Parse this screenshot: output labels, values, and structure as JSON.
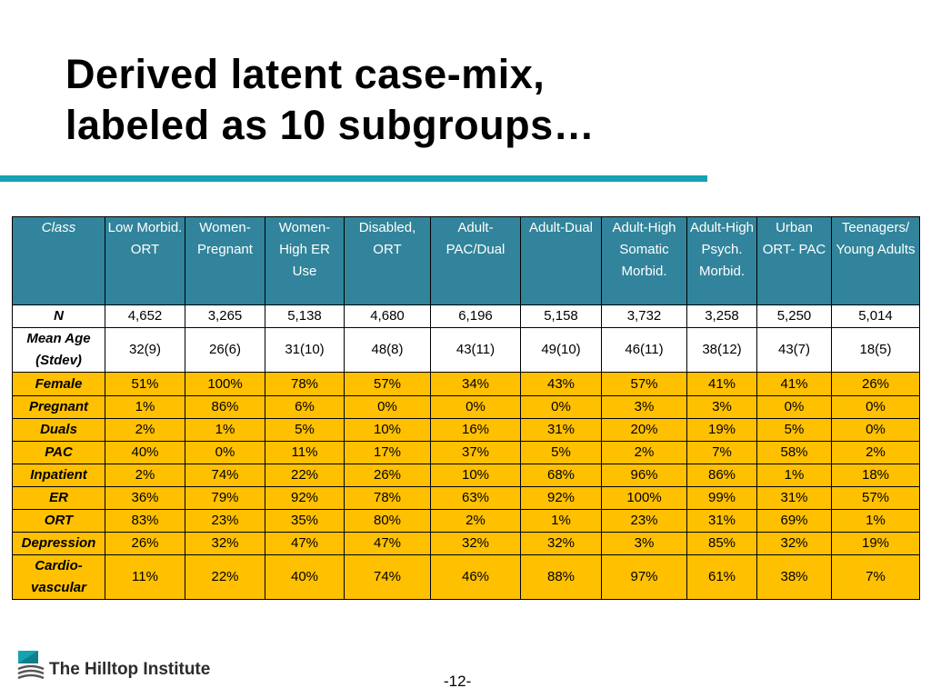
{
  "title": {
    "line1": "Derived latent case-mix,",
    "line2": "labeled as 10 subgroups…"
  },
  "table": {
    "header_label": "Class",
    "columns": [
      "Low Morbid. ORT",
      "Women-Pregnant",
      "Women-High ER Use",
      "Disabled, ORT",
      "Adult-PAC/Dual",
      "Adult-Dual",
      "Adult-High Somatic Morbid.",
      "Adult-High Psych. Morbid.",
      "Urban ORT- PAC",
      "Teenagers/ Young Adults"
    ],
    "rows": [
      {
        "label": "N",
        "values": [
          "4,652",
          "3,265",
          "5,138",
          "4,680",
          "6,196",
          "5,158",
          "3,732",
          "3,258",
          "5,250",
          "5,014"
        ]
      },
      {
        "label": "Mean Age (Stdev)",
        "values": [
          "32(9)",
          "26(6)",
          "31(10)",
          "48(8)",
          "43(11)",
          "49(10)",
          "46(11)",
          "38(12)",
          "43(7)",
          "18(5)"
        ]
      },
      {
        "label": "Female",
        "values": [
          "51%",
          "100%",
          "78%",
          "57%",
          "34%",
          "43%",
          "57%",
          "41%",
          "41%",
          "26%"
        ]
      },
      {
        "label": "Pregnant",
        "values": [
          "1%",
          "86%",
          "6%",
          "0%",
          "0%",
          "0%",
          "3%",
          "3%",
          "0%",
          "0%"
        ]
      },
      {
        "label": "Duals",
        "values": [
          "2%",
          "1%",
          "5%",
          "10%",
          "16%",
          "31%",
          "20%",
          "19%",
          "5%",
          "0%"
        ]
      },
      {
        "label": "PAC",
        "values": [
          "40%",
          "0%",
          "11%",
          "17%",
          "37%",
          "5%",
          "2%",
          "7%",
          "58%",
          "2%"
        ]
      },
      {
        "label": "Inpatient",
        "values": [
          "2%",
          "74%",
          "22%",
          "26%",
          "10%",
          "68%",
          "96%",
          "86%",
          "1%",
          "18%"
        ]
      },
      {
        "label": "ER",
        "values": [
          "36%",
          "79%",
          "92%",
          "78%",
          "63%",
          "92%",
          "100%",
          "99%",
          "31%",
          "57%"
        ]
      },
      {
        "label": "ORT",
        "values": [
          "83%",
          "23%",
          "35%",
          "80%",
          "2%",
          "1%",
          "23%",
          "31%",
          "69%",
          "1%"
        ]
      },
      {
        "label": "Depression",
        "values": [
          "26%",
          "32%",
          "47%",
          "47%",
          "32%",
          "32%",
          "3%",
          "85%",
          "32%",
          "19%"
        ]
      },
      {
        "label": "Cardio-vascular",
        "values": [
          "11%",
          "22%",
          "40%",
          "74%",
          "46%",
          "88%",
          "97%",
          "61%",
          "38%",
          "7%"
        ]
      }
    ]
  },
  "colors": {
    "header_bg": "#31849b",
    "highlight_bg": "#ffc000",
    "rule": "#17a2b2"
  },
  "footer": {
    "logo_text": "The Hilltop Institute",
    "logo_icon": "hilltop-logo-icon",
    "page_number": "-12-"
  }
}
